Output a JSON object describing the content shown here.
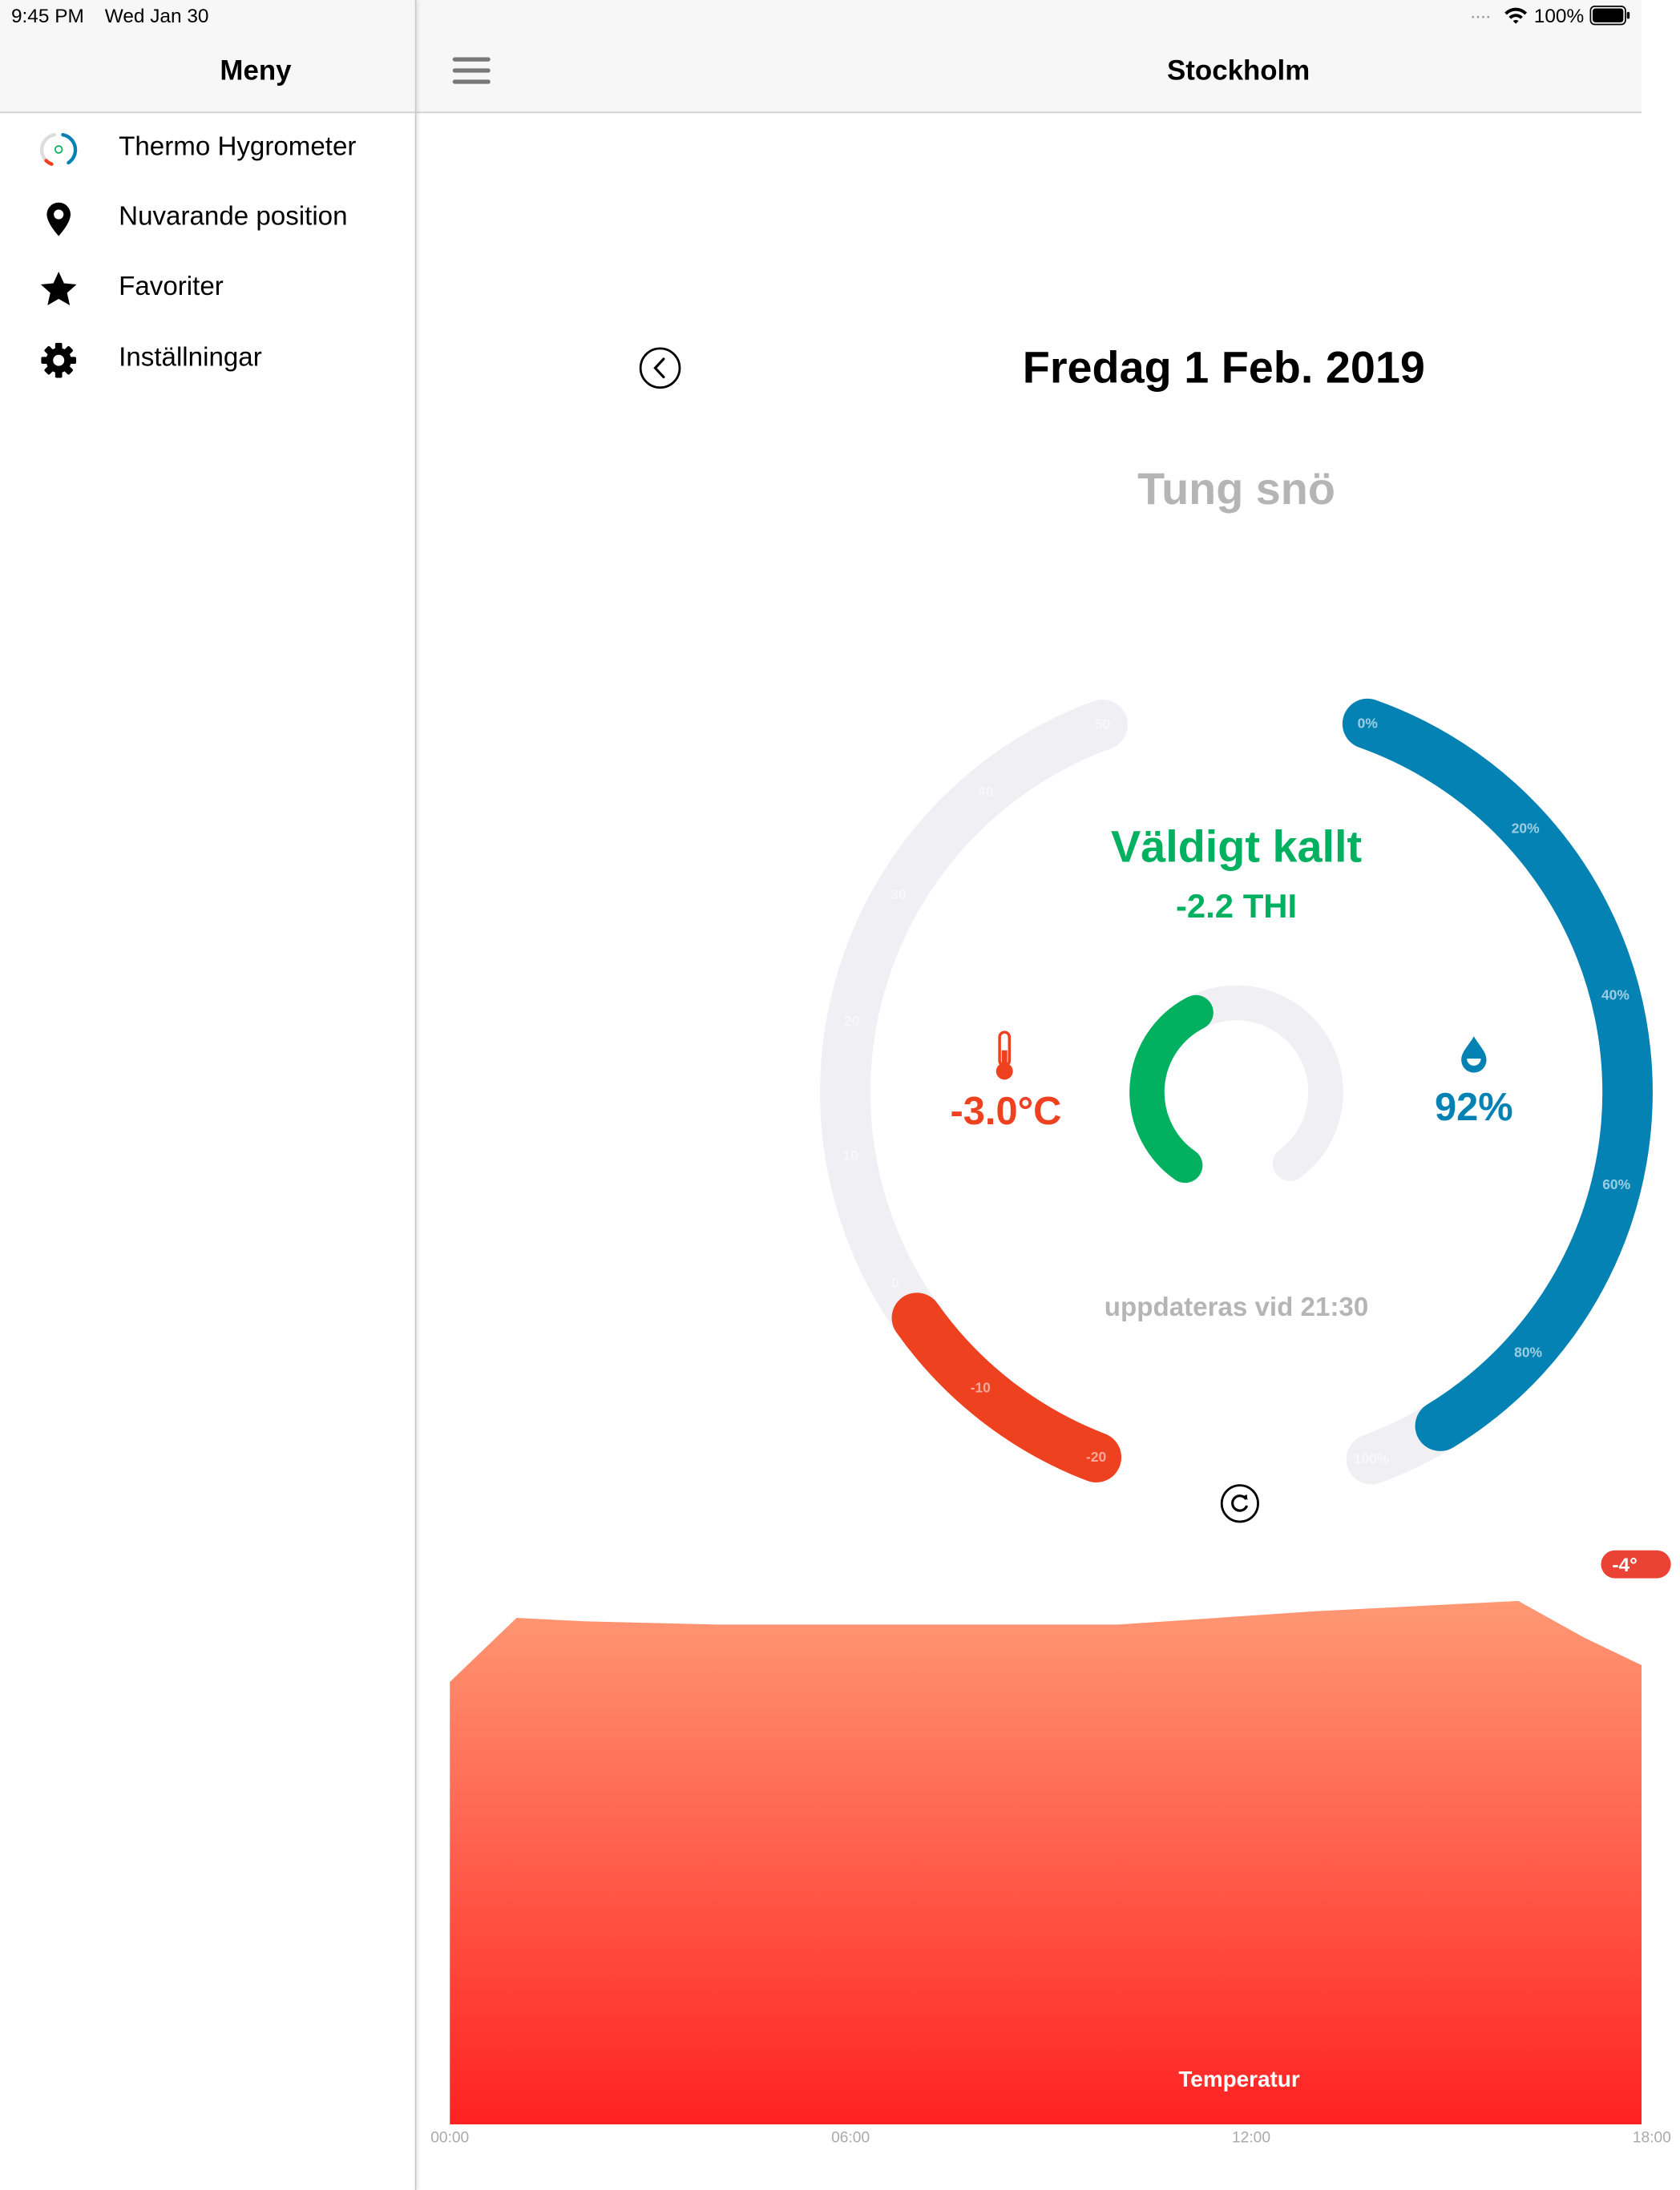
{
  "status_bar": {
    "time": "9:45 PM",
    "date": "Wed Jan 30",
    "battery": "100%"
  },
  "sidebar": {
    "title": "Meny",
    "items": [
      {
        "label": "Thermo Hygrometer",
        "icon": "gauge-icon"
      },
      {
        "label": "Nuvarande position",
        "icon": "location-pin-icon"
      },
      {
        "label": "Favoriter",
        "icon": "star-icon"
      },
      {
        "label": "Inställningar",
        "icon": "gear-icon"
      }
    ]
  },
  "header": {
    "title": "Stockholm",
    "menu_icon": "hamburger-icon"
  },
  "forecast": {
    "date": "Fredag 1 Feb. 2019",
    "condition": "Tung snö",
    "comfort_label": "Väldigt kallt",
    "thi": "-2.2 THI",
    "thi_gauge_fraction": 0.41,
    "temperature": "-3.0°C",
    "temperature_value": -3.0,
    "humidity": "92%",
    "humidity_value": 92,
    "updated": "uppdateras vid 21:30",
    "temp_scale_ticks": [
      "-20",
      "-10",
      "0",
      "10",
      "20",
      "30",
      "40",
      "50"
    ],
    "humidity_scale_ticks": [
      "0%",
      "20%",
      "40%",
      "60%",
      "80%",
      "100%"
    ]
  },
  "colors": {
    "temperature": "#ee4120",
    "humidity": "#0582b4",
    "comfort": "#02b160",
    "track": "#efeff4",
    "muted": "#b5b5b5"
  },
  "chart_data": {
    "type": "area",
    "series": [
      {
        "name": "Temperatur",
        "x": [
          "00:00",
          "01:00",
          "02:00",
          "04:00",
          "06:00",
          "10:00",
          "13:00",
          "16:00",
          "17:00",
          "18:00"
        ],
        "values": [
          -6.9,
          -5.0,
          -5.1,
          -5.2,
          -5.2,
          -5.2,
          -4.8,
          -4.5,
          -5.6,
          -6.4
        ]
      }
    ],
    "x_ticks": [
      "00:00",
      "06:00",
      "12:00",
      "18:00"
    ],
    "badge": "-4°",
    "ylim": [
      -20,
      -3
    ],
    "grid": false
  }
}
